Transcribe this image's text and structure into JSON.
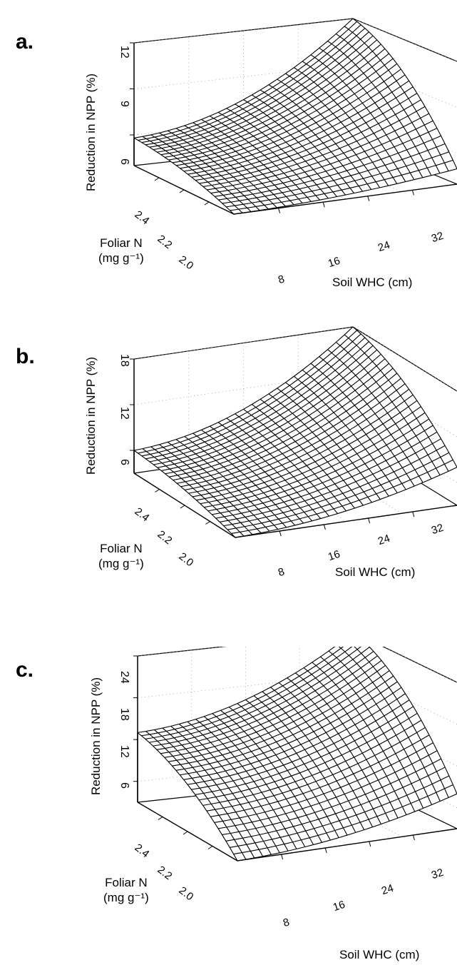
{
  "chart_data": [
    {
      "type": "surface",
      "panel_label": "a.",
      "zlabel": "Reduction in NPP (%)",
      "xlabel": "Soil WHC (cm)",
      "ylabel_line1": "Foliar N",
      "ylabel_line2": "(mg g⁻¹)",
      "z_ticks": [
        "6",
        "9",
        "12"
      ],
      "zlim": [
        4,
        12
      ],
      "x_ticks": [
        "8",
        "16",
        "24",
        "32"
      ],
      "y_ticks": [
        "2.4",
        "2.2",
        "2.0"
      ],
      "surface_corners": {
        "low_whc_high_n": 5.8,
        "low_whc_low_n": 4.0,
        "high_whc_high_n": 12.0,
        "high_whc_low_n": 5.0
      },
      "grid_on": true
    },
    {
      "type": "surface",
      "panel_label": "b.",
      "zlabel": "Reduction in NPP (%)",
      "xlabel": "Soil WHC (cm)",
      "ylabel_line1": "Foliar N",
      "ylabel_line2": "(mg g⁻¹)",
      "z_ticks": [
        "6",
        "12",
        "18"
      ],
      "zlim": [
        3,
        18
      ],
      "x_ticks": [
        "8",
        "16",
        "24",
        "32"
      ],
      "y_ticks": [
        "2.4",
        "2.2",
        "2.0"
      ],
      "surface_corners": {
        "low_whc_high_n": 6.0,
        "low_whc_low_n": 3.0,
        "high_whc_high_n": 18.0,
        "high_whc_low_n": 8.0
      },
      "grid_on": true
    },
    {
      "type": "surface",
      "panel_label": "c.",
      "zlabel": "Reduction in NPP (%)",
      "xlabel": "Soil WHC (cm)",
      "ylabel_line1": "Foliar N",
      "ylabel_line2": "(mg g⁻¹)",
      "z_ticks": [
        "6",
        "12",
        "18",
        "24"
      ],
      "zlim": [
        3,
        24
      ],
      "x_ticks": [
        "8",
        "16",
        "24",
        "32"
      ],
      "y_ticks": [
        "2.4",
        "2.2",
        "2.0"
      ],
      "surface_corners": {
        "low_whc_high_n": 13.0,
        "low_whc_low_n": 3.0,
        "high_whc_high_n": 24.0,
        "high_whc_low_n": 8.0
      },
      "grid_on": true
    }
  ]
}
